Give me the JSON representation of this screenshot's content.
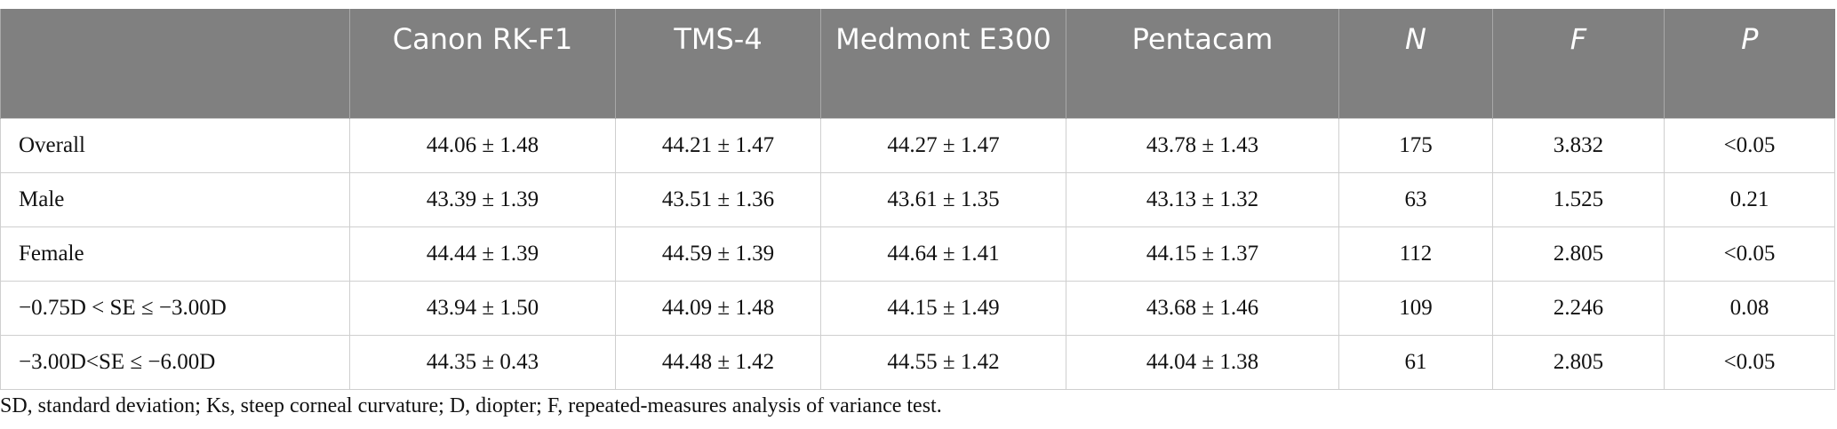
{
  "table": {
    "header": [
      "Canon RK-F1",
      "TMS-4",
      "Medmont E300",
      "Pentacam",
      "N",
      "F",
      "P"
    ],
    "rows": [
      [
        "Overall",
        "44.06 ± 1.48",
        "44.21 ± 1.47",
        "44.27 ± 1.47",
        "43.78 ± 1.43",
        "175",
        "3.832",
        "<0.05"
      ],
      [
        "Male",
        "43.39 ± 1.39",
        "43.51 ± 1.36",
        "43.61 ± 1.35",
        "43.13 ± 1.32",
        "63",
        "1.525",
        "0.21"
      ],
      [
        "Female",
        "44.44 ± 1.39",
        "44.59 ± 1.39",
        "44.64 ± 1.41",
        "44.15 ± 1.37",
        "112",
        "2.805",
        "<0.05"
      ],
      [
        "−0.75D < SE ≤ −3.00D",
        "43.94 ± 1.50",
        "44.09 ± 1.48",
        "44.15 ± 1.49",
        "43.68 ± 1.46",
        "109",
        "2.246",
        "0.08"
      ],
      [
        "−3.00D<SE ≤ −6.00D",
        "44.35 ± 0.43",
        "44.48 ± 1.42",
        "44.55 ± 1.42",
        "44.04 ± 1.38",
        "61",
        "2.805",
        "<0.05"
      ]
    ]
  },
  "footnote": "SD, standard deviation; Ks, steep corneal curvature; D, diopter; F, repeated-measures analysis of variance test."
}
